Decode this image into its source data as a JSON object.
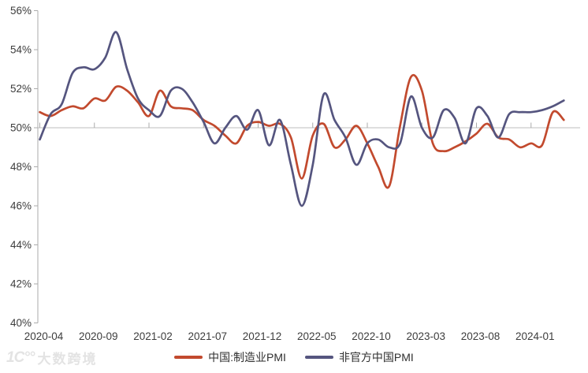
{
  "chart_data": {
    "type": "line",
    "title": "",
    "y_axis": {
      "min": 40,
      "max": 56,
      "step": 2,
      "tick_labels": [
        "40%",
        "42%",
        "44%",
        "46%",
        "48%",
        "50%",
        "52%",
        "54%",
        "56%"
      ]
    },
    "baseline_value": 50,
    "grid": "horizontal line at 50% only",
    "legend_position": "bottom-center",
    "x_months": [
      "2020-04",
      "2020-05",
      "2020-06",
      "2020-07",
      "2020-08",
      "2020-09",
      "2020-10",
      "2020-11",
      "2020-12",
      "2021-01",
      "2021-02",
      "2021-03",
      "2021-04",
      "2021-05",
      "2021-06",
      "2021-07",
      "2021-08",
      "2021-09",
      "2021-10",
      "2021-11",
      "2021-12",
      "2022-01",
      "2022-02",
      "2022-03",
      "2022-04",
      "2022-05",
      "2022-06",
      "2022-07",
      "2022-08",
      "2022-09",
      "2022-10",
      "2022-11",
      "2022-12",
      "2023-01",
      "2023-02",
      "2023-03",
      "2023-04",
      "2023-05",
      "2023-06",
      "2023-07",
      "2023-08",
      "2023-09",
      "2023-10",
      "2023-11",
      "2023-12",
      "2024-01",
      "2024-02",
      "2024-03",
      "2024-04"
    ],
    "x_tick_indices": [
      0,
      5,
      10,
      15,
      20,
      25,
      30,
      35,
      40,
      45
    ],
    "x_tick_labels": [
      "2020-04",
      "2020-09",
      "2021-02",
      "2021-07",
      "2021-12",
      "2022-05",
      "2022-10",
      "2023-03",
      "2023-08",
      "2024-01"
    ],
    "series": [
      {
        "name": "中国:制造业PMI",
        "color": "#C24A2E",
        "values": [
          50.8,
          50.6,
          50.9,
          51.1,
          51.0,
          51.5,
          51.4,
          52.1,
          51.9,
          51.3,
          50.6,
          51.9,
          51.1,
          51.0,
          50.9,
          50.4,
          50.1,
          49.6,
          49.2,
          50.1,
          50.3,
          50.1,
          50.2,
          49.5,
          47.4,
          49.6,
          50.2,
          49.0,
          49.4,
          50.1,
          49.2,
          48.0,
          47.0,
          50.1,
          52.6,
          51.9,
          49.2,
          48.8,
          49.0,
          49.3,
          49.7,
          50.2,
          49.5,
          49.4,
          49.0,
          49.2,
          49.1,
          50.8,
          50.4
        ]
      },
      {
        "name": "非官方中国PMI",
        "color": "#55557F",
        "values": [
          49.4,
          50.7,
          51.2,
          52.8,
          53.1,
          53.0,
          53.6,
          54.9,
          53.0,
          51.5,
          50.9,
          50.6,
          51.9,
          52.0,
          51.3,
          50.3,
          49.2,
          50.0,
          50.6,
          49.9,
          50.9,
          49.1,
          50.4,
          48.1,
          46.0,
          48.1,
          51.7,
          50.4,
          49.5,
          48.1,
          49.2,
          49.4,
          49.0,
          49.2,
          51.6,
          50.0,
          49.5,
          50.9,
          50.5,
          49.2,
          51.0,
          50.6,
          49.5,
          50.7,
          50.8,
          50.8,
          50.9,
          51.1,
          51.4
        ]
      }
    ],
    "colors": {
      "axis": "#ABABAB",
      "gridline": "#BDBDBD",
      "tick_text": "#3D3D3D"
    }
  },
  "watermark": {
    "logo_text": "1C°°",
    "brand_text": "大数跨境"
  }
}
